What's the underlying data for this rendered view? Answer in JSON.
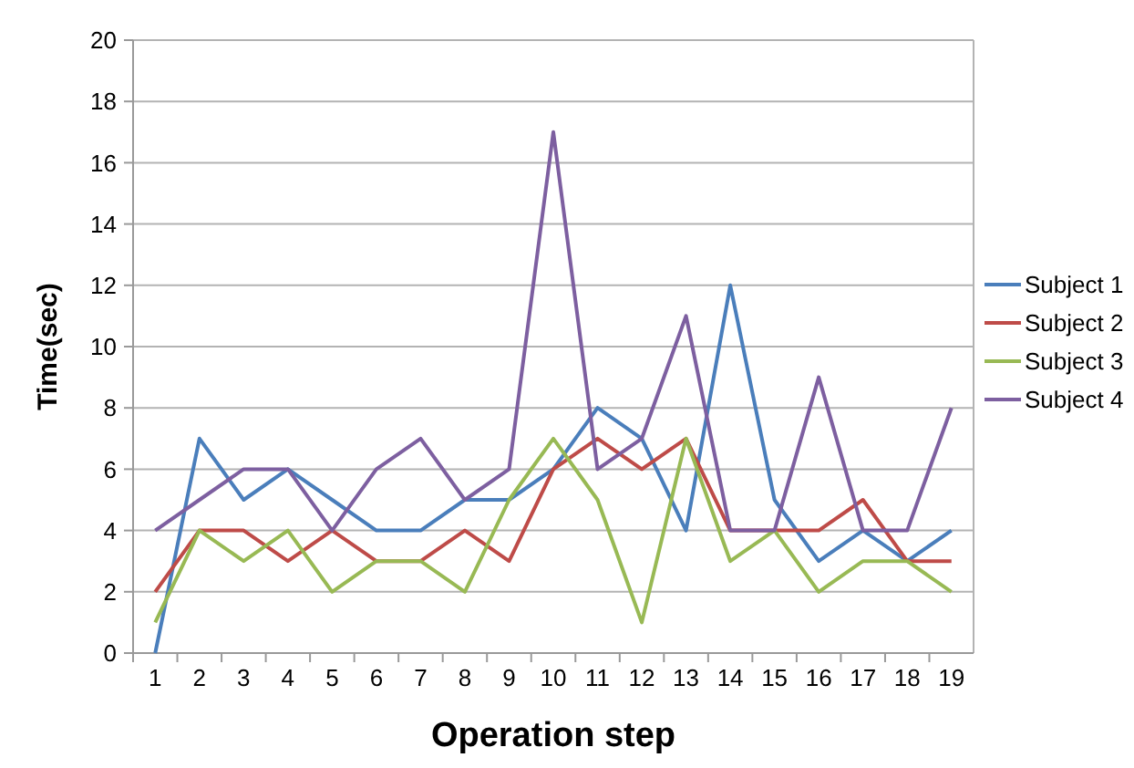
{
  "chart_data": {
    "type": "line",
    "xlabel": "Operation step",
    "ylabel": "Time(sec)",
    "categories": [
      "1",
      "2",
      "3",
      "4",
      "5",
      "6",
      "7",
      "8",
      "9",
      "10",
      "11",
      "12",
      "13",
      "14",
      "15",
      "16",
      "17",
      "18",
      "19"
    ],
    "series": [
      {
        "name": "Subject 1",
        "color": "#4a7ebb",
        "values": [
          0,
          7,
          5,
          6,
          5,
          4,
          4,
          5,
          5,
          6,
          8,
          7,
          4,
          12,
          5,
          3,
          4,
          3,
          4
        ]
      },
      {
        "name": "Subject 2",
        "color": "#be4b48",
        "values": [
          2,
          4,
          4,
          3,
          4,
          3,
          3,
          4,
          3,
          6,
          7,
          6,
          7,
          4,
          4,
          4,
          5,
          3,
          3
        ]
      },
      {
        "name": "Subject 3",
        "color": "#98b954",
        "values": [
          1,
          4,
          3,
          4,
          2,
          3,
          3,
          2,
          5,
          7,
          5,
          1,
          7,
          3,
          4,
          2,
          3,
          3,
          2
        ]
      },
      {
        "name": "Subject 4",
        "color": "#7d5fa0",
        "values": [
          4,
          5,
          6,
          6,
          4,
          6,
          7,
          5,
          6,
          17,
          6,
          7,
          11,
          4,
          4,
          9,
          4,
          4,
          8
        ]
      }
    ],
    "ylim": [
      0,
      20
    ],
    "yticks": [
      0,
      2,
      4,
      6,
      8,
      10,
      12,
      14,
      16,
      18,
      20
    ],
    "grid": "y",
    "legend": "right",
    "marker": "none",
    "line_style": "solid"
  }
}
